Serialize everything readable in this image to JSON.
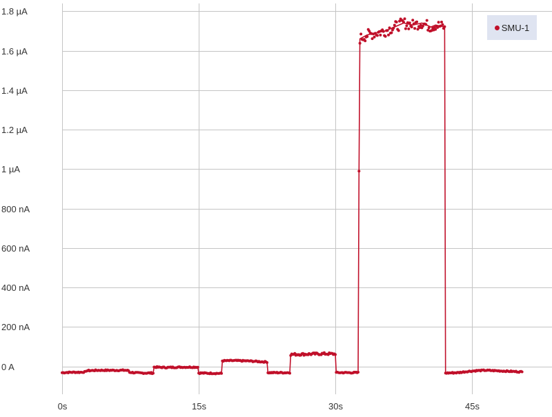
{
  "chart_data": {
    "type": "line",
    "title": "",
    "xlabel": "",
    "ylabel": "",
    "x_unit": "s",
    "y_unit": "A",
    "xlim": [
      0,
      52.5
    ],
    "ylim": [
      -1.5e-07,
      1.8e-06
    ],
    "x_ticks": [
      {
        "value": 0,
        "label": "0s"
      },
      {
        "value": 15,
        "label": "15s"
      },
      {
        "value": 30,
        "label": "30s"
      },
      {
        "value": 45,
        "label": "45s"
      }
    ],
    "y_ticks": [
      {
        "value": 0,
        "label": "0 A"
      },
      {
        "value": 2e-07,
        "label": "200 nA"
      },
      {
        "value": 4e-07,
        "label": "400 nA"
      },
      {
        "value": 6e-07,
        "label": "600 nA"
      },
      {
        "value": 8e-07,
        "label": "800 nA"
      },
      {
        "value": 1e-06,
        "label": "1 µA"
      },
      {
        "value": 1.2e-06,
        "label": "1.2 µA"
      },
      {
        "value": 1.4e-06,
        "label": "1.4 µA"
      },
      {
        "value": 1.6e-06,
        "label": "1.6 µA"
      },
      {
        "value": 1.8e-06,
        "label": "1.8 µA"
      }
    ],
    "grid": true,
    "legend_position": "top-right",
    "series": [
      {
        "name": "SMU-1",
        "color": "#c0102a",
        "points": [
          [
            0,
            -3.2e-08
          ],
          [
            1,
            -3e-08
          ],
          [
            2,
            -3e-08
          ],
          [
            2.6,
            -2.8e-08
          ],
          [
            2.7,
            -2.2e-08
          ],
          [
            4,
            -2e-08
          ],
          [
            5,
            -2e-08
          ],
          [
            6,
            -2e-08
          ],
          [
            7,
            -2e-08
          ],
          [
            7.3,
            -2.2e-08
          ],
          [
            7.4,
            -3e-08
          ],
          [
            8.5,
            -3.4e-08
          ],
          [
            10,
            -3.4e-08
          ],
          [
            10.1,
            -4e-09
          ],
          [
            11.5,
            -6e-09
          ],
          [
            13,
            -4e-09
          ],
          [
            14.9,
            -4e-09
          ],
          [
            15,
            -3.4e-08
          ],
          [
            17.5,
            -3.6e-08
          ],
          [
            17.6,
            2.8e-08
          ],
          [
            19,
            2.9e-08
          ],
          [
            20.5,
            2.7e-08
          ],
          [
            22.5,
            2.2e-08
          ],
          [
            22.6,
            -3.2e-08
          ],
          [
            25,
            -3.2e-08
          ],
          [
            25.1,
            6e-08
          ],
          [
            27,
            6.2e-08
          ],
          [
            29,
            6.4e-08
          ],
          [
            30,
            6.2e-08
          ],
          [
            30.1,
            -3.2e-08
          ],
          [
            32.5,
            -3.2e-08
          ],
          [
            32.6,
            9.9e-07
          ],
          [
            32.7,
            1.66e-06
          ],
          [
            33.5,
            1.68e-06
          ],
          [
            34.5,
            1.69e-06
          ],
          [
            35.5,
            1.7e-06
          ],
          [
            36.5,
            1.72e-06
          ],
          [
            37.5,
            1.74e-06
          ],
          [
            38.5,
            1.73e-06
          ],
          [
            39.5,
            1.74e-06
          ],
          [
            40.5,
            1.72e-06
          ],
          [
            41,
            1.73e-06
          ],
          [
            42,
            1.72e-06
          ],
          [
            42.1,
            -3.4e-08
          ],
          [
            43.5,
            -3.2e-08
          ],
          [
            44.5,
            -2.6e-08
          ],
          [
            45.5,
            -2.2e-08
          ],
          [
            46.5,
            -2e-08
          ],
          [
            47.5,
            -2.2e-08
          ],
          [
            48.5,
            -2.4e-08
          ],
          [
            49.5,
            -2.6e-08
          ],
          [
            50.5,
            -2.8e-08
          ]
        ]
      }
    ]
  },
  "legend": {
    "label": "SMU-1",
    "dot_color": "#c0102a",
    "background": "#dfe4f1"
  },
  "colors": {
    "grid": "#c4c4c4",
    "axis_text": "#333333"
  }
}
